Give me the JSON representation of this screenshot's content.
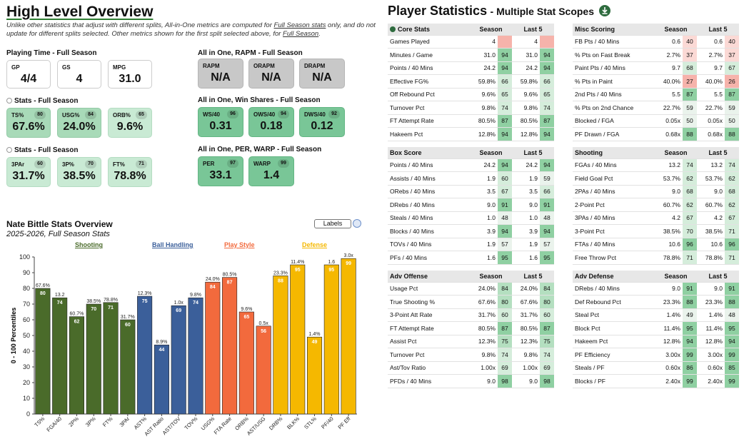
{
  "left": {
    "title": "High Level Overview",
    "note_a": "Unlike other statistics that adjust with different splits, All-in-One metrics are computed for ",
    "note_b": "Full Season stats",
    "note_c": " only, and do not update for different splits selected. Other metrics shown for the first split selected above, for ",
    "note_d": "Full Season",
    "note_e": ".",
    "playing_time": {
      "label": "Playing Time - Full Season",
      "tiles": [
        {
          "label": "GP",
          "value": "4/4"
        },
        {
          "label": "GS",
          "value": "4"
        },
        {
          "label": "MPG",
          "value": "31.0"
        }
      ]
    },
    "rapm": {
      "label": "All in One, RAPM - Full Season",
      "tiles": [
        {
          "label": "RAPM",
          "value": "N/A"
        },
        {
          "label": "ORAPM",
          "value": "N/A"
        },
        {
          "label": "DRAPM",
          "value": "N/A"
        }
      ]
    },
    "stats1": {
      "label": "Stats - Full Season",
      "tiles": [
        {
          "label": "TS%",
          "value": "67.6%",
          "pct": "80"
        },
        {
          "label": "USG%",
          "value": "24.0%",
          "pct": "84"
        },
        {
          "label": "ORB%",
          "value": "9.6%",
          "pct": "65"
        }
      ]
    },
    "winshares": {
      "label": "All in One, Win Shares - Full Season",
      "tiles": [
        {
          "label": "WS/40",
          "value": "0.31",
          "pct": "96"
        },
        {
          "label": "OWS/40",
          "value": "0.18",
          "pct": "94"
        },
        {
          "label": "DWS/40",
          "value": "0.12",
          "pct": "92"
        }
      ]
    },
    "stats2": {
      "label": "Stats - Full Season",
      "tiles": [
        {
          "label": "3PAr",
          "value": "31.7%",
          "pct": "60"
        },
        {
          "label": "3P%",
          "value": "38.5%",
          "pct": "70"
        },
        {
          "label": "FT%",
          "value": "78.8%",
          "pct": "71"
        }
      ]
    },
    "per": {
      "label": "All in One, PER, WARP - Full Season",
      "tiles": [
        {
          "label": "PER",
          "value": "33.1",
          "pct": "97"
        },
        {
          "label": "WARP",
          "value": "1.4",
          "pct": "99"
        }
      ]
    }
  },
  "chart_data": {
    "type": "bar",
    "title": "Nate Bittle Stats Overview",
    "subtitle": "2025-2026, Full Season Stats",
    "ylabel": "0 - 100 Percentiles",
    "ylim": [
      0,
      100
    ],
    "yticks": [
      "0",
      "10",
      "20",
      "30",
      "40",
      "50",
      "60",
      "70",
      "80",
      "90",
      "100"
    ],
    "labels_button": "Labels",
    "groups": [
      {
        "name": "Shooting",
        "color": "#4a6b2a"
      },
      {
        "name": "Ball Handling",
        "color": "#3b5f9a"
      },
      {
        "name": "Play Style",
        "color": "#f26a3d"
      },
      {
        "name": "Defense",
        "color": "#f5b800"
      }
    ],
    "categories": [
      "TS%",
      "FGA/40",
      "2P%",
      "3P%",
      "FT%",
      "3PAr",
      "AST%",
      "AST Ratio",
      "AST/TOV",
      "TOV%",
      "USG%",
      "FTA Rate",
      "ORB%",
      "AST/USG",
      "DRB%",
      "BLK%",
      "STL%",
      "PF/40",
      "PF Eff"
    ],
    "group_index": [
      0,
      0,
      0,
      0,
      0,
      0,
      1,
      1,
      1,
      1,
      2,
      2,
      2,
      2,
      3,
      3,
      3,
      3,
      3
    ],
    "values": [
      80,
      74,
      62,
      70,
      71,
      60,
      75,
      44,
      69,
      74,
      84,
      87,
      65,
      56,
      88,
      95,
      49,
      95,
      99
    ],
    "raw_labels": [
      "67.6%",
      "13.2",
      "60.7%",
      "38.5%",
      "78.8%",
      "31.7%",
      "12.3%",
      "8.9%",
      "1.0x",
      "9.8%",
      "24.0%",
      "80.5%",
      "9.6%",
      "0.5x",
      "23.3%",
      "11.4%",
      "1.4%",
      "1.6",
      "3.0x"
    ]
  },
  "right": {
    "title": "Player Statistics",
    "subtitle": "- Multiple Stat Scopes",
    "col_season": "Season",
    "col_last5": "Last 5",
    "tables": [
      {
        "header": "Core Stats",
        "rows": [
          [
            "Games Played",
            "4",
            "",
            "4",
            ""
          ],
          [
            "Minutes / Game",
            "31.0",
            "94",
            "31.0",
            "94"
          ],
          [
            "Points / 40 Mins",
            "24.2",
            "94",
            "24.2",
            "94"
          ],
          [
            "Effective FG%",
            "59.8%",
            "66",
            "59.8%",
            "66"
          ],
          [
            "Off Rebound Pct",
            "9.6%",
            "65",
            "9.6%",
            "65"
          ],
          [
            "Turnover Pct",
            "9.8%",
            "74",
            "9.8%",
            "74"
          ],
          [
            "FT Attempt Rate",
            "80.5%",
            "87",
            "80.5%",
            "87"
          ],
          [
            "Hakeem Pct",
            "12.8%",
            "94",
            "12.8%",
            "94"
          ]
        ]
      },
      {
        "header": "Misc Scoring",
        "rows": [
          [
            "FB Pts / 40 Mins",
            "0.6",
            "40",
            "0.6",
            "40"
          ],
          [
            "% Pts on Fast Break",
            "2.7%",
            "37",
            "2.7%",
            "37"
          ],
          [
            "Paint Pts / 40 Mins",
            "9.7",
            "68",
            "9.7",
            "67"
          ],
          [
            "% Pts in Paint",
            "40.0%",
            "27",
            "40.0%",
            "26"
          ],
          [
            "2nd Pts / 40 Mins",
            "5.5",
            "87",
            "5.5",
            "87"
          ],
          [
            "% Pts on 2nd Chance",
            "22.7%",
            "59",
            "22.7%",
            "59"
          ],
          [
            "Blocked / FGA",
            "0.05x",
            "50",
            "0.05x",
            "50"
          ],
          [
            "PF Drawn / FGA",
            "0.68x",
            "88",
            "0.68x",
            "88"
          ]
        ]
      },
      {
        "header": "Box Score",
        "rows": [
          [
            "Points / 40 Mins",
            "24.2",
            "94",
            "24.2",
            "94"
          ],
          [
            "Assists / 40 Mins",
            "1.9",
            "60",
            "1.9",
            "59"
          ],
          [
            "ORebs / 40 Mins",
            "3.5",
            "67",
            "3.5",
            "66"
          ],
          [
            "DRebs / 40 Mins",
            "9.0",
            "91",
            "9.0",
            "91"
          ],
          [
            "Steals / 40 Mins",
            "1.0",
            "48",
            "1.0",
            "48"
          ],
          [
            "Blocks / 40 Mins",
            "3.9",
            "94",
            "3.9",
            "94"
          ],
          [
            "TOVs / 40 Mins",
            "1.9",
            "57",
            "1.9",
            "57"
          ],
          [
            "PFs / 40 Mins",
            "1.6",
            "95",
            "1.6",
            "95"
          ]
        ]
      },
      {
        "header": "Shooting",
        "rows": [
          [
            "FGAs / 40 Mins",
            "13.2",
            "74",
            "13.2",
            "74"
          ],
          [
            "Field Goal Pct",
            "53.7%",
            "62",
            "53.7%",
            "62"
          ],
          [
            "2PAs / 40 Mins",
            "9.0",
            "68",
            "9.0",
            "68"
          ],
          [
            "2-Point Pct",
            "60.7%",
            "62",
            "60.7%",
            "62"
          ],
          [
            "3PAs / 40 Mins",
            "4.2",
            "67",
            "4.2",
            "67"
          ],
          [
            "3-Point Pct",
            "38.5%",
            "70",
            "38.5%",
            "71"
          ],
          [
            "FTAs / 40 Mins",
            "10.6",
            "96",
            "10.6",
            "96"
          ],
          [
            "Free Throw Pct",
            "78.8%",
            "71",
            "78.8%",
            "71"
          ]
        ]
      },
      {
        "header": "Adv Offense",
        "rows": [
          [
            "Usage Pct",
            "24.0%",
            "84",
            "24.0%",
            "84"
          ],
          [
            "True Shooting %",
            "67.6%",
            "80",
            "67.6%",
            "80"
          ],
          [
            "3-Point Att Rate",
            "31.7%",
            "60",
            "31.7%",
            "60"
          ],
          [
            "FT Attempt Rate",
            "80.5%",
            "87",
            "80.5%",
            "87"
          ],
          [
            "Assist Pct",
            "12.3%",
            "75",
            "12.3%",
            "75"
          ],
          [
            "Turnover Pct",
            "9.8%",
            "74",
            "9.8%",
            "74"
          ],
          [
            "Ast/Tov Ratio",
            "1.00x",
            "69",
            "1.00x",
            "69"
          ],
          [
            "PFDs / 40 Mins",
            "9.0",
            "98",
            "9.0",
            "98"
          ]
        ]
      },
      {
        "header": "Adv Defense",
        "rows": [
          [
            "DRebs / 40 Mins",
            "9.0",
            "91",
            "9.0",
            "91"
          ],
          [
            "Def Rebound Pct",
            "23.3%",
            "88",
            "23.3%",
            "88"
          ],
          [
            "Steal Pct",
            "1.4%",
            "49",
            "1.4%",
            "48"
          ],
          [
            "Block Pct",
            "11.4%",
            "95",
            "11.4%",
            "95"
          ],
          [
            "Hakeem Pct",
            "12.8%",
            "94",
            "12.8%",
            "94"
          ],
          [
            "PF Efficiency",
            "3.00x",
            "99",
            "3.00x",
            "99"
          ],
          [
            "Steals / PF",
            "0.60x",
            "86",
            "0.60x",
            "85"
          ],
          [
            "Blocks / PF",
            "2.40x",
            "99",
            "2.40x",
            "99"
          ]
        ]
      }
    ]
  }
}
